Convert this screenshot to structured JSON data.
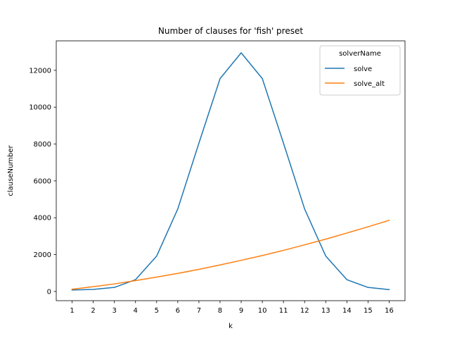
{
  "chart_data": {
    "type": "line",
    "title": "Number of clauses for 'fish' preset",
    "xlabel": "k",
    "ylabel": "clauseNumber",
    "x": [
      1,
      2,
      3,
      4,
      5,
      6,
      7,
      8,
      9,
      10,
      11,
      12,
      13,
      14,
      15,
      16
    ],
    "xlim": [
      0.25,
      16.75
    ],
    "ylim": [
      -500,
      13600
    ],
    "yticks": [
      0,
      2000,
      4000,
      6000,
      8000,
      10000,
      12000
    ],
    "grid": false,
    "legend": {
      "title": "solverName",
      "placement": "upper right"
    },
    "series": [
      {
        "name": "solve",
        "color": "#1f77b4",
        "values": [
          80,
          110,
          220,
          640,
          1920,
          4480,
          8050,
          11550,
          12950,
          11550,
          8050,
          4480,
          1920,
          640,
          220,
          100
        ]
      },
      {
        "name": "solve_alt",
        "color": "#ff7f0e",
        "values": [
          120,
          260,
          410,
          590,
          780,
          980,
          1200,
          1440,
          1690,
          1950,
          2230,
          2530,
          2840,
          3170,
          3510,
          3860
        ]
      }
    ]
  }
}
